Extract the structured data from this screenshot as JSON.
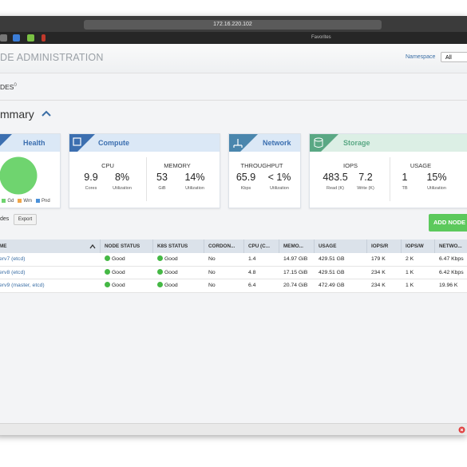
{
  "browser": {
    "address": "172.16.220.102",
    "favorites": "Favorites"
  },
  "header": {
    "title": "DE ADMINISTRATION",
    "namespace_label": "Namespace",
    "namespace_value": "All"
  },
  "tab": {
    "label": "DES",
    "badge": "0"
  },
  "summary": {
    "title": "mmary"
  },
  "cards": {
    "health": {
      "title": "Health",
      "legend": [
        {
          "label": "d",
          "color": "#6fd46f"
        },
        {
          "label": "Gd",
          "color": "#6fd46f"
        },
        {
          "label": "Wm",
          "color": "#f0a64a"
        },
        {
          "label": "Pnd",
          "color": "#4a90d9"
        }
      ]
    },
    "compute": {
      "title": "Compute",
      "sections": [
        {
          "label": "CPU",
          "stats": [
            {
              "value": "9.9",
              "unit": "Cores"
            },
            {
              "value": "8%",
              "unit": "Utilization"
            }
          ]
        },
        {
          "label": "MEMORY",
          "stats": [
            {
              "value": "53",
              "unit": "GiB"
            },
            {
              "value": "14%",
              "unit": "Utilization"
            }
          ]
        }
      ]
    },
    "network": {
      "title": "Network",
      "sections": [
        {
          "label": "THROUGHPUT",
          "stats": [
            {
              "value": "65.9",
              "unit": "Kbps"
            },
            {
              "value": "< 1%",
              "unit": "Utilization"
            }
          ]
        }
      ]
    },
    "storage": {
      "title": "Storage",
      "sections": [
        {
          "label": "IOPS",
          "stats": [
            {
              "value": "483.5",
              "unit": "Read (K)"
            },
            {
              "value": "7.2",
              "unit": "Write (K)"
            }
          ]
        },
        {
          "label": "USAGE",
          "stats": [
            {
              "value": "1",
              "unit": "TB"
            },
            {
              "value": "15%",
              "unit": "Utilization"
            }
          ]
        }
      ]
    }
  },
  "toolbar": {
    "label": "des",
    "export": "Export",
    "add": "ADD NODE"
  },
  "table": {
    "columns": [
      "ME",
      "NODE STATUS",
      "K8S STATUS",
      "CORDON...",
      "CPU (C...",
      "MEMO...",
      "USAGE",
      "IOPS/R",
      "IOPS/W",
      "NETWO..."
    ],
    "rows": [
      [
        "erv7 (etcd)",
        "Good",
        "Good",
        "No",
        "1.4",
        "14.97 GiB",
        "429.51 GB",
        "179 K",
        "2 K",
        "6.47 Kbps"
      ],
      [
        "erv8 (etcd)",
        "Good",
        "Good",
        "No",
        "4.8",
        "17.15 GiB",
        "429.51 GB",
        "234 K",
        "1 K",
        "6.42 Kbps"
      ],
      [
        "erv9 (master, etcd)",
        "Good",
        "Good",
        "No",
        "6.4",
        "20.74 GiB",
        "472.49 GB",
        "234 K",
        "1 K",
        "19.96 K"
      ]
    ]
  }
}
